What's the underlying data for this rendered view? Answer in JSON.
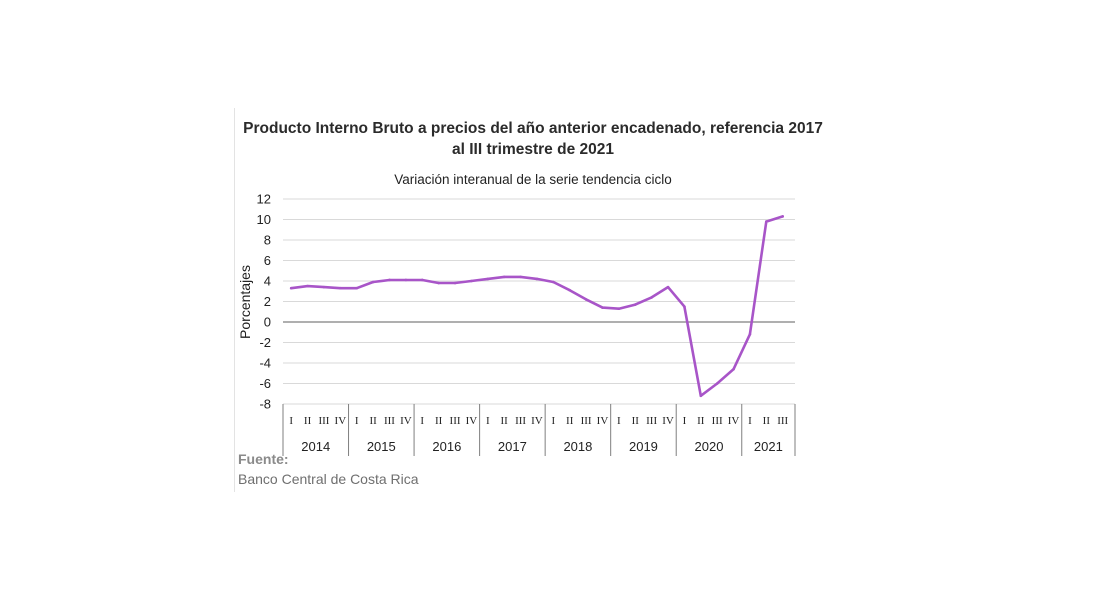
{
  "title_line1": "Producto Interno Bruto a precios del año anterior encadenado, referencia 2017",
  "title_line2": "al III trimestre de 2021",
  "subtitle": "Variación interanual de la serie tendencia ciclo",
  "source_label": "Fuente:",
  "source_text": "Banco Central de Costa Rica",
  "colors": {
    "line": "#a855c8",
    "grid": "#d9d9d9",
    "zero": "#7f7f7f"
  },
  "chart_data": {
    "type": "line",
    "ylabel": "Porcentajes",
    "ylim": [
      -8,
      12
    ],
    "yticks": [
      -8,
      -6,
      -4,
      -2,
      0,
      2,
      4,
      6,
      8,
      10,
      12
    ],
    "grid": true,
    "quarter_labels": [
      "I",
      "II",
      "III",
      "IV"
    ],
    "years": [
      {
        "label": "2014",
        "quarters": 4
      },
      {
        "label": "2015",
        "quarters": 4
      },
      {
        "label": "2016",
        "quarters": 4
      },
      {
        "label": "2017",
        "quarters": 4
      },
      {
        "label": "2018",
        "quarters": 4
      },
      {
        "label": "2019",
        "quarters": 4
      },
      {
        "label": "2020",
        "quarters": 4
      },
      {
        "label": "2021",
        "quarters": 3
      }
    ],
    "series": [
      {
        "values": [
          3.3,
          3.5,
          3.4,
          3.3,
          3.3,
          3.9,
          4.1,
          4.1,
          4.1,
          3.8,
          3.8,
          4.0,
          4.2,
          4.4,
          4.4,
          4.2,
          3.9,
          3.1,
          2.2,
          1.4,
          1.3,
          1.7,
          2.4,
          3.4,
          1.5,
          -7.2,
          -6.0,
          -4.6,
          -1.2,
          9.8,
          10.3
        ]
      }
    ]
  }
}
